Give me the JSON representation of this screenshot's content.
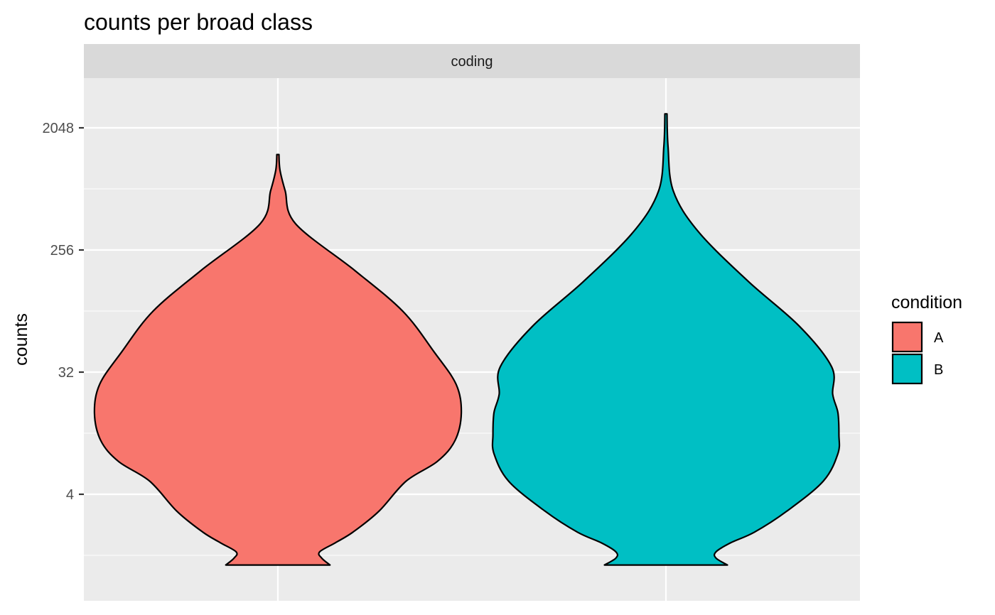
{
  "chart_data": {
    "type": "violin",
    "title": "counts per broad class",
    "facet": "coding",
    "xlabel": "",
    "ylabel": "counts",
    "y_scale": "log2",
    "ylim": [
      1.1,
      5000
    ],
    "y_ticks": [
      4,
      32,
      256,
      2048
    ],
    "y_tick_labels": [
      "4",
      "32",
      "256",
      "2048"
    ],
    "grid": true,
    "legend": {
      "title": "condition",
      "position": "right",
      "entries": [
        {
          "label": "A",
          "color": "#F8766D"
        },
        {
          "label": "B",
          "color": "#00BFC4"
        }
      ]
    },
    "series": [
      {
        "name": "A",
        "color": "#F8766D",
        "y_range": [
          1.2,
          1300
        ],
        "profile": [
          [
            1.2,
            0.5
          ],
          [
            1.35,
            0.42
          ],
          [
            1.5,
            0.4
          ],
          [
            1.75,
            0.55
          ],
          [
            2.1,
            0.72
          ],
          [
            3,
            0.97
          ],
          [
            5,
            1.23
          ],
          [
            7,
            1.53
          ],
          [
            10,
            1.7
          ],
          [
            16,
            1.76
          ],
          [
            26,
            1.71
          ],
          [
            45,
            1.5
          ],
          [
            90,
            1.2
          ],
          [
            180,
            0.74
          ],
          [
            400,
            0.17
          ],
          [
            700,
            0.07
          ],
          [
            1000,
            0.02
          ],
          [
            1300,
            0.01
          ]
        ]
      },
      {
        "name": "B",
        "color": "#00BFC4",
        "y_range": [
          1.2,
          2600
        ],
        "profile": [
          [
            1.2,
            0.59
          ],
          [
            1.35,
            0.48
          ],
          [
            1.5,
            0.48
          ],
          [
            1.75,
            0.62
          ],
          [
            2.1,
            0.85
          ],
          [
            3,
            1.16
          ],
          [
            5,
            1.51
          ],
          [
            8,
            1.65
          ],
          [
            11,
            1.66
          ],
          [
            16,
            1.65
          ],
          [
            22,
            1.6
          ],
          [
            35,
            1.59
          ],
          [
            70,
            1.28
          ],
          [
            150,
            0.79
          ],
          [
            350,
            0.31
          ],
          [
            700,
            0.07
          ],
          [
            1500,
            0.02
          ],
          [
            2600,
            0.01
          ]
        ]
      }
    ]
  }
}
